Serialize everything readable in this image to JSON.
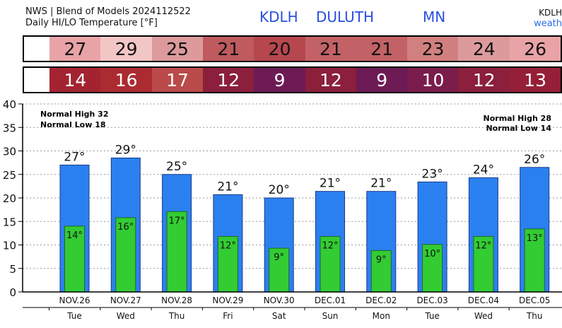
{
  "header": {
    "title_line1": "NWS | Blend of Models 2024112522",
    "title_line2": "Daily HI/LO Temperature [°F]",
    "station_id": "KDLH",
    "station_city": "DULUTH",
    "station_state": "MN",
    "right_id": "KDLH",
    "right_link": "weath"
  },
  "hi_row": [
    {
      "value": "27",
      "color": "#e8a3a7"
    },
    {
      "value": "29",
      "color": "#f3c6c6"
    },
    {
      "value": "25",
      "color": "#dc9a9c"
    },
    {
      "value": "21",
      "color": "#bf5a5e"
    },
    {
      "value": "20",
      "color": "#b6474f"
    },
    {
      "value": "21",
      "color": "#c36266"
    },
    {
      "value": "21",
      "color": "#c36266"
    },
    {
      "value": "23",
      "color": "#d1807f"
    },
    {
      "value": "24",
      "color": "#dc9a9c"
    },
    {
      "value": "26",
      "color": "#e8a3a7"
    }
  ],
  "lo_row": [
    {
      "value": "14",
      "color": "#a32331"
    },
    {
      "value": "16",
      "color": "#ab2b30"
    },
    {
      "value": "17",
      "color": "#bb4a4a"
    },
    {
      "value": "12",
      "color": "#8b1f3c"
    },
    {
      "value": "9",
      "color": "#6d1a55"
    },
    {
      "value": "12",
      "color": "#8b1f3c"
    },
    {
      "value": "9",
      "color": "#6d1a55"
    },
    {
      "value": "10",
      "color": "#7a1c4c"
    },
    {
      "value": "12",
      "color": "#8b1f3c"
    },
    {
      "value": "13",
      "color": "#951f37"
    }
  ],
  "chart_data": {
    "type": "bar",
    "title": "Daily HI/LO Temperature [°F]",
    "categories": [
      "NOV.26",
      "NOV.27",
      "NOV.28",
      "NOV.29",
      "NOV.30",
      "DEC.01",
      "DEC.02",
      "DEC.03",
      "DEC.04",
      "DEC.05"
    ],
    "days": [
      "Tue",
      "Wed",
      "Thu",
      "Fri",
      "Sat",
      "Sun",
      "Mon",
      "Tue",
      "Wed",
      "Thu"
    ],
    "series": [
      {
        "values": [
          27,
          28.5,
          25,
          20.7,
          20,
          21.4,
          21.4,
          23.4,
          24.3,
          26.5
        ],
        "labels": [
          "27°",
          "29°",
          "25°",
          "21°",
          "20°",
          "21°",
          "21°",
          "23°",
          "24°",
          "26°"
        ],
        "color": "#2b80f0"
      },
      {
        "values": [
          14,
          15.8,
          17.1,
          11.8,
          9.3,
          11.8,
          8.8,
          10.1,
          11.8,
          13.4
        ],
        "labels": [
          "14°",
          "16°",
          "17°",
          "12°",
          "9°",
          "12°",
          "9°",
          "10°",
          "12°",
          "13°"
        ],
        "color": "#33cc33"
      }
    ],
    "y_ticks": [
      "0",
      "5",
      "10",
      "15",
      "20",
      "25",
      "30",
      "35",
      "40"
    ],
    "ylim": [
      0,
      40
    ],
    "grid": true,
    "annotations": {
      "left": [
        "Normal High 32",
        "Normal Low 18"
      ],
      "right": [
        "Normal High 28",
        "Normal Low 14"
      ]
    }
  }
}
